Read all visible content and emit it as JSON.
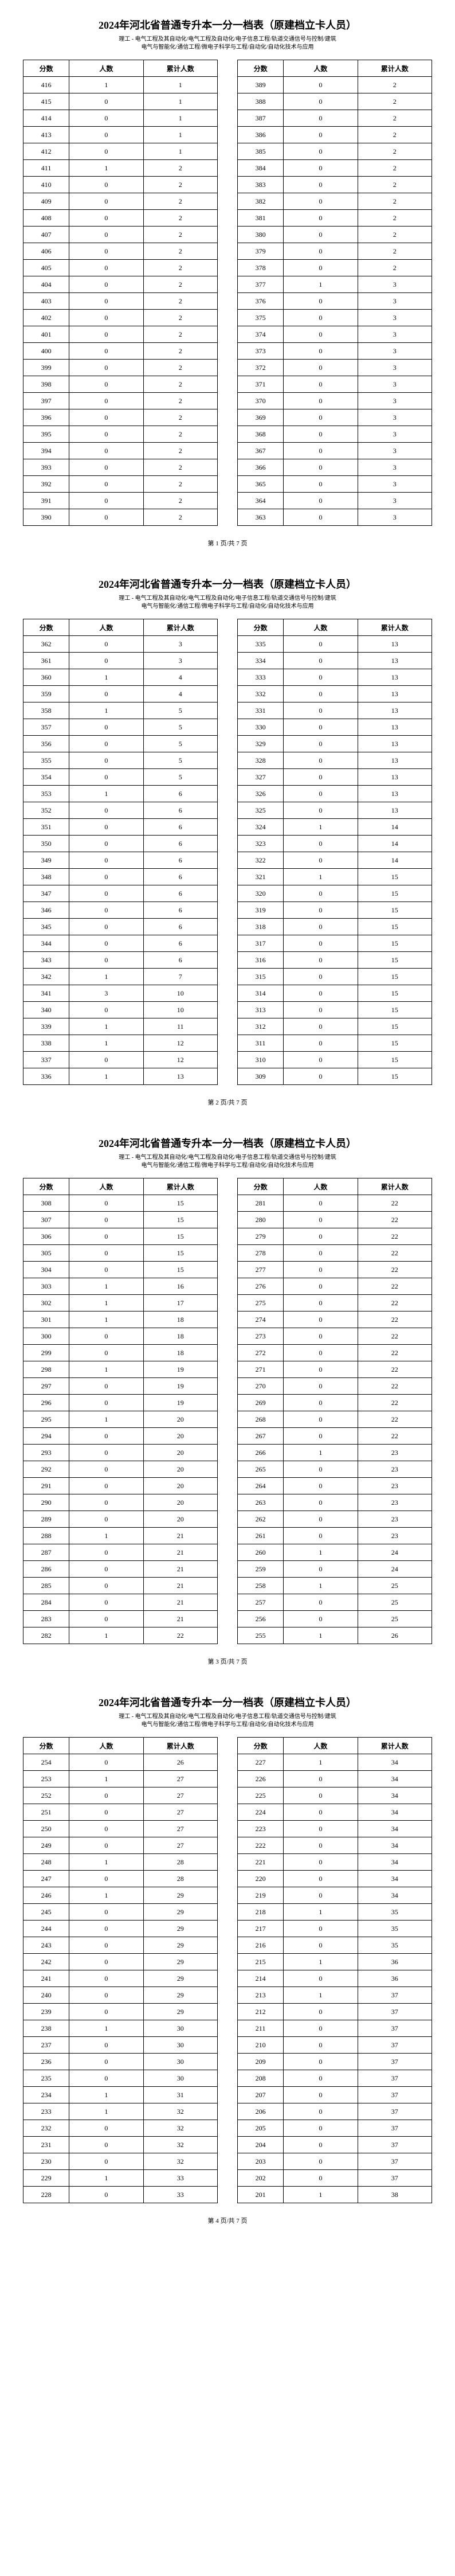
{
  "title": "2024年河北省普通专升本一分一档表（原建档立卡人员）",
  "subtitle_line1": "理工 - 电气工程及其自动化/电气工程及自动化/电子信息工程/轨道交通信号与控制/建筑",
  "subtitle_line2": "电气与智能化/通信工程/微电子科学与工程/自动化/自动化技术与应用",
  "headers": {
    "score": "分数",
    "count": "人数",
    "cum": "累计人数"
  },
  "footer_prefix": "第 ",
  "footer_mid": " 页/共 ",
  "footer_suffix": " 页",
  "total_pages": 7,
  "pages": [
    {
      "page_no": 1,
      "left": [
        {
          "s": 416,
          "c": 1,
          "k": 1
        },
        {
          "s": 415,
          "c": 0,
          "k": 1
        },
        {
          "s": 414,
          "c": 0,
          "k": 1
        },
        {
          "s": 413,
          "c": 0,
          "k": 1
        },
        {
          "s": 412,
          "c": 0,
          "k": 1
        },
        {
          "s": 411,
          "c": 1,
          "k": 2
        },
        {
          "s": 410,
          "c": 0,
          "k": 2
        },
        {
          "s": 409,
          "c": 0,
          "k": 2
        },
        {
          "s": 408,
          "c": 0,
          "k": 2
        },
        {
          "s": 407,
          "c": 0,
          "k": 2
        },
        {
          "s": 406,
          "c": 0,
          "k": 2
        },
        {
          "s": 405,
          "c": 0,
          "k": 2
        },
        {
          "s": 404,
          "c": 0,
          "k": 2
        },
        {
          "s": 403,
          "c": 0,
          "k": 2
        },
        {
          "s": 402,
          "c": 0,
          "k": 2
        },
        {
          "s": 401,
          "c": 0,
          "k": 2
        },
        {
          "s": 400,
          "c": 0,
          "k": 2
        },
        {
          "s": 399,
          "c": 0,
          "k": 2
        },
        {
          "s": 398,
          "c": 0,
          "k": 2
        },
        {
          "s": 397,
          "c": 0,
          "k": 2
        },
        {
          "s": 396,
          "c": 0,
          "k": 2
        },
        {
          "s": 395,
          "c": 0,
          "k": 2
        },
        {
          "s": 394,
          "c": 0,
          "k": 2
        },
        {
          "s": 393,
          "c": 0,
          "k": 2
        },
        {
          "s": 392,
          "c": 0,
          "k": 2
        },
        {
          "s": 391,
          "c": 0,
          "k": 2
        },
        {
          "s": 390,
          "c": 0,
          "k": 2
        }
      ],
      "right": [
        {
          "s": 389,
          "c": 0,
          "k": 2
        },
        {
          "s": 388,
          "c": 0,
          "k": 2
        },
        {
          "s": 387,
          "c": 0,
          "k": 2
        },
        {
          "s": 386,
          "c": 0,
          "k": 2
        },
        {
          "s": 385,
          "c": 0,
          "k": 2
        },
        {
          "s": 384,
          "c": 0,
          "k": 2
        },
        {
          "s": 383,
          "c": 0,
          "k": 2
        },
        {
          "s": 382,
          "c": 0,
          "k": 2
        },
        {
          "s": 381,
          "c": 0,
          "k": 2
        },
        {
          "s": 380,
          "c": 0,
          "k": 2
        },
        {
          "s": 379,
          "c": 0,
          "k": 2
        },
        {
          "s": 378,
          "c": 0,
          "k": 2
        },
        {
          "s": 377,
          "c": 1,
          "k": 3
        },
        {
          "s": 376,
          "c": 0,
          "k": 3
        },
        {
          "s": 375,
          "c": 0,
          "k": 3
        },
        {
          "s": 374,
          "c": 0,
          "k": 3
        },
        {
          "s": 373,
          "c": 0,
          "k": 3
        },
        {
          "s": 372,
          "c": 0,
          "k": 3
        },
        {
          "s": 371,
          "c": 0,
          "k": 3
        },
        {
          "s": 370,
          "c": 0,
          "k": 3
        },
        {
          "s": 369,
          "c": 0,
          "k": 3
        },
        {
          "s": 368,
          "c": 0,
          "k": 3
        },
        {
          "s": 367,
          "c": 0,
          "k": 3
        },
        {
          "s": 366,
          "c": 0,
          "k": 3
        },
        {
          "s": 365,
          "c": 0,
          "k": 3
        },
        {
          "s": 364,
          "c": 0,
          "k": 3
        },
        {
          "s": 363,
          "c": 0,
          "k": 3
        }
      ]
    },
    {
      "page_no": 2,
      "left": [
        {
          "s": 362,
          "c": 0,
          "k": 3
        },
        {
          "s": 361,
          "c": 0,
          "k": 3
        },
        {
          "s": 360,
          "c": 1,
          "k": 4
        },
        {
          "s": 359,
          "c": 0,
          "k": 4
        },
        {
          "s": 358,
          "c": 1,
          "k": 5
        },
        {
          "s": 357,
          "c": 0,
          "k": 5
        },
        {
          "s": 356,
          "c": 0,
          "k": 5
        },
        {
          "s": 355,
          "c": 0,
          "k": 5
        },
        {
          "s": 354,
          "c": 0,
          "k": 5
        },
        {
          "s": 353,
          "c": 1,
          "k": 6
        },
        {
          "s": 352,
          "c": 0,
          "k": 6
        },
        {
          "s": 351,
          "c": 0,
          "k": 6
        },
        {
          "s": 350,
          "c": 0,
          "k": 6
        },
        {
          "s": 349,
          "c": 0,
          "k": 6
        },
        {
          "s": 348,
          "c": 0,
          "k": 6
        },
        {
          "s": 347,
          "c": 0,
          "k": 6
        },
        {
          "s": 346,
          "c": 0,
          "k": 6
        },
        {
          "s": 345,
          "c": 0,
          "k": 6
        },
        {
          "s": 344,
          "c": 0,
          "k": 6
        },
        {
          "s": 343,
          "c": 0,
          "k": 6
        },
        {
          "s": 342,
          "c": 1,
          "k": 7
        },
        {
          "s": 341,
          "c": 3,
          "k": 10
        },
        {
          "s": 340,
          "c": 0,
          "k": 10
        },
        {
          "s": 339,
          "c": 1,
          "k": 11
        },
        {
          "s": 338,
          "c": 1,
          "k": 12
        },
        {
          "s": 337,
          "c": 0,
          "k": 12
        },
        {
          "s": 336,
          "c": 1,
          "k": 13
        }
      ],
      "right": [
        {
          "s": 335,
          "c": 0,
          "k": 13
        },
        {
          "s": 334,
          "c": 0,
          "k": 13
        },
        {
          "s": 333,
          "c": 0,
          "k": 13
        },
        {
          "s": 332,
          "c": 0,
          "k": 13
        },
        {
          "s": 331,
          "c": 0,
          "k": 13
        },
        {
          "s": 330,
          "c": 0,
          "k": 13
        },
        {
          "s": 329,
          "c": 0,
          "k": 13
        },
        {
          "s": 328,
          "c": 0,
          "k": 13
        },
        {
          "s": 327,
          "c": 0,
          "k": 13
        },
        {
          "s": 326,
          "c": 0,
          "k": 13
        },
        {
          "s": 325,
          "c": 0,
          "k": 13
        },
        {
          "s": 324,
          "c": 1,
          "k": 14
        },
        {
          "s": 323,
          "c": 0,
          "k": 14
        },
        {
          "s": 322,
          "c": 0,
          "k": 14
        },
        {
          "s": 321,
          "c": 1,
          "k": 15
        },
        {
          "s": 320,
          "c": 0,
          "k": 15
        },
        {
          "s": 319,
          "c": 0,
          "k": 15
        },
        {
          "s": 318,
          "c": 0,
          "k": 15
        },
        {
          "s": 317,
          "c": 0,
          "k": 15
        },
        {
          "s": 316,
          "c": 0,
          "k": 15
        },
        {
          "s": 315,
          "c": 0,
          "k": 15
        },
        {
          "s": 314,
          "c": 0,
          "k": 15
        },
        {
          "s": 313,
          "c": 0,
          "k": 15
        },
        {
          "s": 312,
          "c": 0,
          "k": 15
        },
        {
          "s": 311,
          "c": 0,
          "k": 15
        },
        {
          "s": 310,
          "c": 0,
          "k": 15
        },
        {
          "s": 309,
          "c": 0,
          "k": 15
        }
      ]
    },
    {
      "page_no": 3,
      "left": [
        {
          "s": 308,
          "c": 0,
          "k": 15
        },
        {
          "s": 307,
          "c": 0,
          "k": 15
        },
        {
          "s": 306,
          "c": 0,
          "k": 15
        },
        {
          "s": 305,
          "c": 0,
          "k": 15
        },
        {
          "s": 304,
          "c": 0,
          "k": 15
        },
        {
          "s": 303,
          "c": 1,
          "k": 16
        },
        {
          "s": 302,
          "c": 1,
          "k": 17
        },
        {
          "s": 301,
          "c": 1,
          "k": 18
        },
        {
          "s": 300,
          "c": 0,
          "k": 18
        },
        {
          "s": 299,
          "c": 0,
          "k": 18
        },
        {
          "s": 298,
          "c": 1,
          "k": 19
        },
        {
          "s": 297,
          "c": 0,
          "k": 19
        },
        {
          "s": 296,
          "c": 0,
          "k": 19
        },
        {
          "s": 295,
          "c": 1,
          "k": 20
        },
        {
          "s": 294,
          "c": 0,
          "k": 20
        },
        {
          "s": 293,
          "c": 0,
          "k": 20
        },
        {
          "s": 292,
          "c": 0,
          "k": 20
        },
        {
          "s": 291,
          "c": 0,
          "k": 20
        },
        {
          "s": 290,
          "c": 0,
          "k": 20
        },
        {
          "s": 289,
          "c": 0,
          "k": 20
        },
        {
          "s": 288,
          "c": 1,
          "k": 21
        },
        {
          "s": 287,
          "c": 0,
          "k": 21
        },
        {
          "s": 286,
          "c": 0,
          "k": 21
        },
        {
          "s": 285,
          "c": 0,
          "k": 21
        },
        {
          "s": 284,
          "c": 0,
          "k": 21
        },
        {
          "s": 283,
          "c": 0,
          "k": 21
        },
        {
          "s": 282,
          "c": 1,
          "k": 22
        }
      ],
      "right": [
        {
          "s": 281,
          "c": 0,
          "k": 22
        },
        {
          "s": 280,
          "c": 0,
          "k": 22
        },
        {
          "s": 279,
          "c": 0,
          "k": 22
        },
        {
          "s": 278,
          "c": 0,
          "k": 22
        },
        {
          "s": 277,
          "c": 0,
          "k": 22
        },
        {
          "s": 276,
          "c": 0,
          "k": 22
        },
        {
          "s": 275,
          "c": 0,
          "k": 22
        },
        {
          "s": 274,
          "c": 0,
          "k": 22
        },
        {
          "s": 273,
          "c": 0,
          "k": 22
        },
        {
          "s": 272,
          "c": 0,
          "k": 22
        },
        {
          "s": 271,
          "c": 0,
          "k": 22
        },
        {
          "s": 270,
          "c": 0,
          "k": 22
        },
        {
          "s": 269,
          "c": 0,
          "k": 22
        },
        {
          "s": 268,
          "c": 0,
          "k": 22
        },
        {
          "s": 267,
          "c": 0,
          "k": 22
        },
        {
          "s": 266,
          "c": 1,
          "k": 23
        },
        {
          "s": 265,
          "c": 0,
          "k": 23
        },
        {
          "s": 264,
          "c": 0,
          "k": 23
        },
        {
          "s": 263,
          "c": 0,
          "k": 23
        },
        {
          "s": 262,
          "c": 0,
          "k": 23
        },
        {
          "s": 261,
          "c": 0,
          "k": 23
        },
        {
          "s": 260,
          "c": 1,
          "k": 24
        },
        {
          "s": 259,
          "c": 0,
          "k": 24
        },
        {
          "s": 258,
          "c": 1,
          "k": 25
        },
        {
          "s": 257,
          "c": 0,
          "k": 25
        },
        {
          "s": 256,
          "c": 0,
          "k": 25
        },
        {
          "s": 255,
          "c": 1,
          "k": 26
        }
      ]
    },
    {
      "page_no": 4,
      "left": [
        {
          "s": 254,
          "c": 0,
          "k": 26
        },
        {
          "s": 253,
          "c": 1,
          "k": 27
        },
        {
          "s": 252,
          "c": 0,
          "k": 27
        },
        {
          "s": 251,
          "c": 0,
          "k": 27
        },
        {
          "s": 250,
          "c": 0,
          "k": 27
        },
        {
          "s": 249,
          "c": 0,
          "k": 27
        },
        {
          "s": 248,
          "c": 1,
          "k": 28
        },
        {
          "s": 247,
          "c": 0,
          "k": 28
        },
        {
          "s": 246,
          "c": 1,
          "k": 29
        },
        {
          "s": 245,
          "c": 0,
          "k": 29
        },
        {
          "s": 244,
          "c": 0,
          "k": 29
        },
        {
          "s": 243,
          "c": 0,
          "k": 29
        },
        {
          "s": 242,
          "c": 0,
          "k": 29
        },
        {
          "s": 241,
          "c": 0,
          "k": 29
        },
        {
          "s": 240,
          "c": 0,
          "k": 29
        },
        {
          "s": 239,
          "c": 0,
          "k": 29
        },
        {
          "s": 238,
          "c": 1,
          "k": 30
        },
        {
          "s": 237,
          "c": 0,
          "k": 30
        },
        {
          "s": 236,
          "c": 0,
          "k": 30
        },
        {
          "s": 235,
          "c": 0,
          "k": 30
        },
        {
          "s": 234,
          "c": 1,
          "k": 31
        },
        {
          "s": 233,
          "c": 1,
          "k": 32
        },
        {
          "s": 232,
          "c": 0,
          "k": 32
        },
        {
          "s": 231,
          "c": 0,
          "k": 32
        },
        {
          "s": 230,
          "c": 0,
          "k": 32
        },
        {
          "s": 229,
          "c": 1,
          "k": 33
        },
        {
          "s": 228,
          "c": 0,
          "k": 33
        }
      ],
      "right": [
        {
          "s": 227,
          "c": 1,
          "k": 34
        },
        {
          "s": 226,
          "c": 0,
          "k": 34
        },
        {
          "s": 225,
          "c": 0,
          "k": 34
        },
        {
          "s": 224,
          "c": 0,
          "k": 34
        },
        {
          "s": 223,
          "c": 0,
          "k": 34
        },
        {
          "s": 222,
          "c": 0,
          "k": 34
        },
        {
          "s": 221,
          "c": 0,
          "k": 34
        },
        {
          "s": 220,
          "c": 0,
          "k": 34
        },
        {
          "s": 219,
          "c": 0,
          "k": 34
        },
        {
          "s": 218,
          "c": 1,
          "k": 35
        },
        {
          "s": 217,
          "c": 0,
          "k": 35
        },
        {
          "s": 216,
          "c": 0,
          "k": 35
        },
        {
          "s": 215,
          "c": 1,
          "k": 36
        },
        {
          "s": 214,
          "c": 0,
          "k": 36
        },
        {
          "s": 213,
          "c": 1,
          "k": 37
        },
        {
          "s": 212,
          "c": 0,
          "k": 37
        },
        {
          "s": 211,
          "c": 0,
          "k": 37
        },
        {
          "s": 210,
          "c": 0,
          "k": 37
        },
        {
          "s": 209,
          "c": 0,
          "k": 37
        },
        {
          "s": 208,
          "c": 0,
          "k": 37
        },
        {
          "s": 207,
          "c": 0,
          "k": 37
        },
        {
          "s": 206,
          "c": 0,
          "k": 37
        },
        {
          "s": 205,
          "c": 0,
          "k": 37
        },
        {
          "s": 204,
          "c": 0,
          "k": 37
        },
        {
          "s": 203,
          "c": 0,
          "k": 37
        },
        {
          "s": 202,
          "c": 0,
          "k": 37
        },
        {
          "s": 201,
          "c": 1,
          "k": 38
        }
      ]
    }
  ]
}
